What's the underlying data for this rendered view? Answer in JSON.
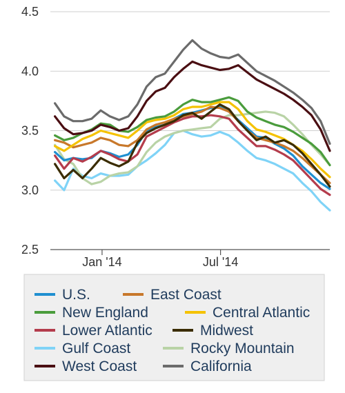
{
  "chart_data": {
    "type": "line",
    "title": "",
    "xlabel": "",
    "ylabel": "",
    "ylim": [
      2.5,
      4.5
    ],
    "yticks": [
      2.5,
      3.0,
      3.5,
      4.0,
      4.5
    ],
    "ytick_labels": [
      "2.5",
      "3.0",
      "3.5",
      "4.0",
      "4.5"
    ],
    "xlim": [
      "2013-10-14",
      "2014-12-15"
    ],
    "xticks": [
      {
        "date": "2014-01-01",
        "label": "Jan '14"
      },
      {
        "date": "2014-07-01",
        "label": "Jul '14"
      }
    ],
    "grid": "horizontal",
    "legend_position": "bottom",
    "x": [
      "2013-10-21",
      "2013-11-04",
      "2013-11-18",
      "2013-12-02",
      "2013-12-16",
      "2013-12-30",
      "2014-01-13",
      "2014-01-27",
      "2014-02-10",
      "2014-02-24",
      "2014-03-10",
      "2014-03-24",
      "2014-04-07",
      "2014-04-21",
      "2014-05-05",
      "2014-05-19",
      "2014-06-02",
      "2014-06-16",
      "2014-06-30",
      "2014-07-14",
      "2014-07-28",
      "2014-08-11",
      "2014-08-25",
      "2014-09-08",
      "2014-09-22",
      "2014-10-06",
      "2014-10-20",
      "2014-11-03",
      "2014-11-17",
      "2014-12-01",
      "2014-12-15"
    ],
    "series": [
      {
        "name": "U.S.",
        "color": "#1f8fd0",
        "values": [
          3.32,
          3.25,
          3.27,
          3.26,
          3.27,
          3.33,
          3.31,
          3.28,
          3.3,
          3.38,
          3.5,
          3.53,
          3.55,
          3.6,
          3.64,
          3.65,
          3.67,
          3.69,
          3.7,
          3.66,
          3.59,
          3.52,
          3.45,
          3.44,
          3.39,
          3.35,
          3.29,
          3.2,
          3.13,
          3.06,
          3.01
        ]
      },
      {
        "name": "East Coast",
        "color": "#c8782b",
        "values": [
          3.42,
          3.4,
          3.36,
          3.38,
          3.4,
          3.44,
          3.42,
          3.38,
          3.37,
          3.42,
          3.51,
          3.55,
          3.57,
          3.6,
          3.62,
          3.64,
          3.66,
          3.7,
          3.69,
          3.66,
          3.58,
          3.5,
          3.44,
          3.42,
          3.4,
          3.37,
          3.33,
          3.27,
          3.2,
          3.13,
          3.06
        ]
      },
      {
        "name": "New England",
        "color": "#4a9c3c",
        "values": [
          3.46,
          3.42,
          3.44,
          3.48,
          3.51,
          3.56,
          3.55,
          3.5,
          3.49,
          3.53,
          3.59,
          3.61,
          3.62,
          3.66,
          3.72,
          3.76,
          3.74,
          3.74,
          3.76,
          3.78,
          3.75,
          3.66,
          3.61,
          3.58,
          3.55,
          3.53,
          3.49,
          3.44,
          3.39,
          3.32,
          3.21
        ]
      },
      {
        "name": "Central Atlantic",
        "color": "#f5c200",
        "values": [
          3.37,
          3.33,
          3.38,
          3.43,
          3.46,
          3.5,
          3.48,
          3.46,
          3.44,
          3.5,
          3.57,
          3.59,
          3.6,
          3.63,
          3.68,
          3.7,
          3.7,
          3.72,
          3.74,
          3.74,
          3.68,
          3.58,
          3.51,
          3.49,
          3.46,
          3.43,
          3.38,
          3.33,
          3.26,
          3.18,
          3.11
        ]
      },
      {
        "name": "Lower Atlantic",
        "color": "#b43c4c",
        "values": [
          3.29,
          3.18,
          3.27,
          3.24,
          3.28,
          3.33,
          3.3,
          3.26,
          3.24,
          3.3,
          3.45,
          3.49,
          3.53,
          3.57,
          3.6,
          3.62,
          3.62,
          3.63,
          3.62,
          3.6,
          3.51,
          3.44,
          3.37,
          3.37,
          3.34,
          3.3,
          3.25,
          3.17,
          3.09,
          3.01,
          2.96
        ]
      },
      {
        "name": "Midwest",
        "color": "#3a2c00",
        "values": [
          3.22,
          3.1,
          3.17,
          3.1,
          3.18,
          3.27,
          3.23,
          3.2,
          3.24,
          3.4,
          3.48,
          3.52,
          3.55,
          3.58,
          3.63,
          3.65,
          3.6,
          3.66,
          3.72,
          3.68,
          3.58,
          3.5,
          3.42,
          3.45,
          3.4,
          3.42,
          3.38,
          3.31,
          3.22,
          3.13,
          3.03
        ]
      },
      {
        "name": "Gulf Coast",
        "color": "#7fd3f7",
        "values": [
          3.08,
          3.0,
          3.18,
          3.12,
          3.1,
          3.14,
          3.12,
          3.12,
          3.13,
          3.2,
          3.25,
          3.31,
          3.38,
          3.48,
          3.5,
          3.47,
          3.45,
          3.46,
          3.49,
          3.46,
          3.4,
          3.33,
          3.27,
          3.25,
          3.22,
          3.18,
          3.14,
          3.06,
          2.99,
          2.9,
          2.83
        ]
      },
      {
        "name": "Rocky Mountain",
        "color": "#b9d3a6",
        "values": [
          3.38,
          3.26,
          3.22,
          3.1,
          3.05,
          3.07,
          3.12,
          3.14,
          3.15,
          3.2,
          3.32,
          3.4,
          3.45,
          3.48,
          3.5,
          3.51,
          3.52,
          3.53,
          3.6,
          3.63,
          3.63,
          3.64,
          3.65,
          3.66,
          3.65,
          3.62,
          3.55,
          3.47,
          3.38,
          3.3,
          3.21
        ]
      },
      {
        "name": "West Coast",
        "color": "#4a0e12",
        "values": [
          3.62,
          3.52,
          3.47,
          3.48,
          3.5,
          3.55,
          3.53,
          3.5,
          3.52,
          3.62,
          3.75,
          3.83,
          3.86,
          3.95,
          4.02,
          4.08,
          4.05,
          4.03,
          4.01,
          4.02,
          4.05,
          3.99,
          3.93,
          3.89,
          3.85,
          3.81,
          3.76,
          3.7,
          3.63,
          3.51,
          3.33
        ]
      },
      {
        "name": "California",
        "color": "#6b6b6b",
        "values": [
          3.73,
          3.62,
          3.58,
          3.58,
          3.6,
          3.67,
          3.62,
          3.59,
          3.62,
          3.72,
          3.87,
          3.95,
          3.98,
          4.08,
          4.18,
          4.26,
          4.19,
          4.15,
          4.12,
          4.11,
          4.14,
          4.07,
          4.0,
          3.96,
          3.92,
          3.87,
          3.82,
          3.76,
          3.69,
          3.58,
          3.39
        ]
      }
    ]
  }
}
